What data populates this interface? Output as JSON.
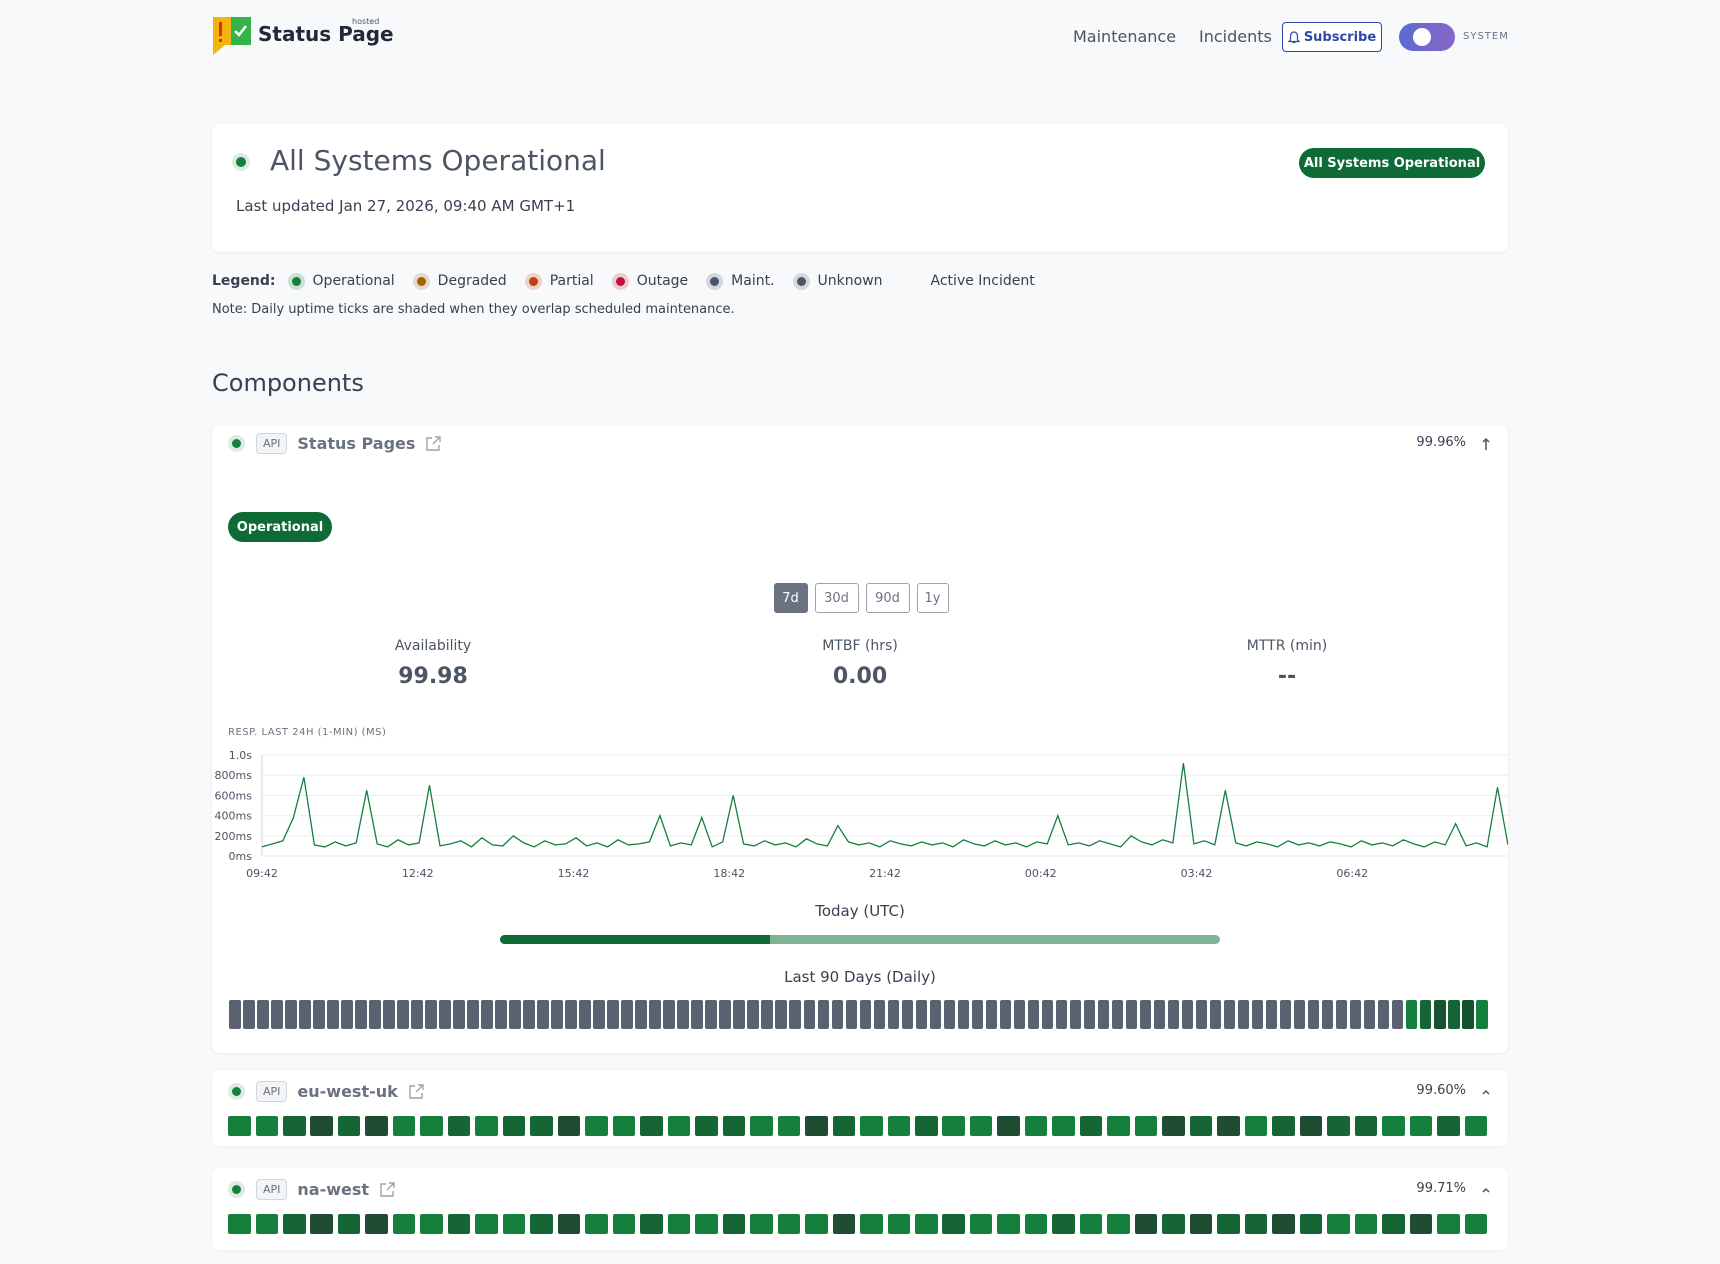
{
  "header": {
    "brand": "Status Page",
    "badge": "hosted",
    "nav": [
      "Maintenance",
      "Incidents"
    ],
    "subscribe": "Subscribe",
    "theme": "SYSTEM"
  },
  "hero": {
    "title": "All Systems Operational",
    "updated": "Last updated Jan 27, 2026, 09:40 AM GMT+1",
    "badge": "All Systems Operational"
  },
  "legend": {
    "label": "Legend:",
    "items": [
      {
        "label": "Operational",
        "color": "#15803d"
      },
      {
        "label": "Degraded",
        "color": "#a16207"
      },
      {
        "label": "Partial",
        "color": "#c2410c"
      },
      {
        "label": "Outage",
        "color": "#be123c"
      },
      {
        "label": "Maint.",
        "color": "#475569"
      },
      {
        "label": "Unknown",
        "color": "#4b5563"
      }
    ],
    "active": "Active Incident"
  },
  "note": "Note: Daily uptime ticks are shaded when they overlap scheduled maintenance.",
  "components_heading": "Components",
  "components": [
    {
      "tag": "API",
      "name": "Status Pages",
      "uptime": "99.96%",
      "expanded": true,
      "status": "Operational",
      "ranges": [
        {
          "label": "7d",
          "selected": true
        },
        {
          "label": "30d"
        },
        {
          "label": "90d"
        },
        {
          "label": "1y"
        }
      ],
      "metrics": [
        {
          "label": "Availability",
          "value": "99.98"
        },
        {
          "label": "MTBF (hrs)",
          "value": "0.00"
        },
        {
          "label": "MTTR (min)",
          "value": "--"
        }
      ],
      "chart": {
        "type": "line",
        "title": "RESP. LAST 24H (1-MIN) (MS)",
        "color": "#15803d",
        "grid": true,
        "ylim": [
          0,
          1000
        ],
        "yticks": [
          {
            "value": 0,
            "label": "0ms"
          },
          {
            "value": 200,
            "label": "200ms"
          },
          {
            "value": 400,
            "label": "400ms"
          },
          {
            "value": 600,
            "label": "600ms"
          },
          {
            "value": 800,
            "label": "800ms"
          },
          {
            "value": 1000,
            "label": "1.0s"
          }
        ],
        "xtick_labels": [
          "09:42",
          "12:42",
          "15:42",
          "18:42",
          "21:42",
          "00:42",
          "03:42",
          "06:42"
        ],
        "values": [
          90,
          120,
          150,
          380,
          780,
          110,
          90,
          140,
          100,
          130,
          650,
          120,
          90,
          160,
          110,
          130,
          700,
          100,
          120,
          150,
          90,
          180,
          110,
          100,
          200,
          130,
          90,
          150,
          110,
          120,
          180,
          100,
          130,
          90,
          160,
          110,
          120,
          140,
          400,
          100,
          130,
          110,
          380,
          90,
          140,
          600,
          120,
          100,
          150,
          110,
          130,
          90,
          170,
          120,
          100,
          300,
          140,
          110,
          130,
          90,
          150,
          120,
          100,
          140,
          110,
          130,
          90,
          160,
          120,
          100,
          150,
          110,
          130,
          90,
          140,
          120,
          400,
          110,
          130,
          100,
          150,
          120,
          90,
          200,
          140,
          110,
          160,
          130,
          920,
          120,
          150,
          110,
          650,
          130,
          100,
          140,
          120,
          90,
          150,
          110,
          130,
          100,
          140,
          120,
          90,
          150,
          110,
          130,
          100,
          160,
          120,
          90,
          140,
          110,
          320,
          100,
          130,
          90,
          680,
          110
        ]
      },
      "today_label": "Today (UTC)",
      "days_label": "Last 90 Days (Daily)",
      "day_colors": [
        "#5a6170",
        "#5a6170",
        "#5a6170",
        "#5a6170",
        "#5a6170",
        "#5a6170",
        "#5a6170",
        "#5a6170",
        "#5a6170",
        "#5a6170",
        "#5a6170",
        "#5a6170",
        "#5a6170",
        "#5a6170",
        "#5a6170",
        "#5a6170",
        "#5a6170",
        "#5a6170",
        "#5a6170",
        "#5a6170",
        "#5a6170",
        "#5a6170",
        "#5a6170",
        "#5a6170",
        "#5a6170",
        "#5a6170",
        "#5a6170",
        "#5a6170",
        "#5a6170",
        "#5a6170",
        "#5a6170",
        "#5a6170",
        "#5a6170",
        "#5a6170",
        "#5a6170",
        "#5a6170",
        "#5a6170",
        "#5a6170",
        "#5a6170",
        "#5a6170",
        "#5a6170",
        "#5a6170",
        "#5a6170",
        "#5a6170",
        "#5a6170",
        "#5a6170",
        "#5a6170",
        "#5a6170",
        "#5a6170",
        "#5a6170",
        "#5a6170",
        "#5a6170",
        "#5a6170",
        "#5a6170",
        "#5a6170",
        "#5a6170",
        "#5a6170",
        "#5a6170",
        "#5a6170",
        "#5a6170",
        "#5a6170",
        "#5a6170",
        "#5a6170",
        "#5a6170",
        "#5a6170",
        "#5a6170",
        "#5a6170",
        "#5a6170",
        "#5a6170",
        "#5a6170",
        "#5a6170",
        "#5a6170",
        "#5a6170",
        "#5a6170",
        "#5a6170",
        "#5a6170",
        "#5a6170",
        "#5a6170",
        "#5a6170",
        "#5a6170",
        "#5a6170",
        "#5a6170",
        "#5a6170",
        "#5a6170",
        "#15803d",
        "#166534",
        "#14532d",
        "#166534",
        "#14532d",
        "#15803d"
      ]
    },
    {
      "tag": "API",
      "name": "eu-west-uk",
      "uptime": "99.60%",
      "expanded": false,
      "day_colors": [
        "#15803d",
        "#15803d",
        "#166534",
        "#1e4d33",
        "#166534",
        "#1e4d33",
        "#15803d",
        "#15803d",
        "#166534",
        "#15803d",
        "#166534",
        "#166534",
        "#1e4d33",
        "#15803d",
        "#15803d",
        "#166534",
        "#15803d",
        "#166534",
        "#166534",
        "#15803d",
        "#15803d",
        "#1e4d33",
        "#166534",
        "#15803d",
        "#15803d",
        "#166534",
        "#15803d",
        "#15803d",
        "#1e4d33",
        "#15803d",
        "#15803d",
        "#166534",
        "#15803d",
        "#15803d",
        "#1e4d33",
        "#166534",
        "#1e4d33",
        "#15803d",
        "#166534",
        "#1e4d33",
        "#166534",
        "#166534",
        "#15803d",
        "#15803d",
        "#166534",
        "#15803d"
      ]
    },
    {
      "tag": "API",
      "name": "na-west",
      "uptime": "99.71%",
      "expanded": false,
      "day_colors": [
        "#15803d",
        "#15803d",
        "#166534",
        "#1e4d33",
        "#166534",
        "#1e4d33",
        "#15803d",
        "#15803d",
        "#166534",
        "#15803d",
        "#15803d",
        "#166534",
        "#1e4d33",
        "#15803d",
        "#15803d",
        "#166534",
        "#15803d",
        "#15803d",
        "#166534",
        "#15803d",
        "#15803d",
        "#15803d",
        "#1e4d33",
        "#15803d",
        "#15803d",
        "#15803d",
        "#166534",
        "#15803d",
        "#15803d",
        "#15803d",
        "#166534",
        "#15803d",
        "#15803d",
        "#1e4d33",
        "#166534",
        "#1e4d33",
        "#166534",
        "#166534",
        "#1e4d33",
        "#166534",
        "#15803d",
        "#15803d",
        "#166534",
        "#1e4d33",
        "#15803d",
        "#15803d"
      ]
    }
  ]
}
